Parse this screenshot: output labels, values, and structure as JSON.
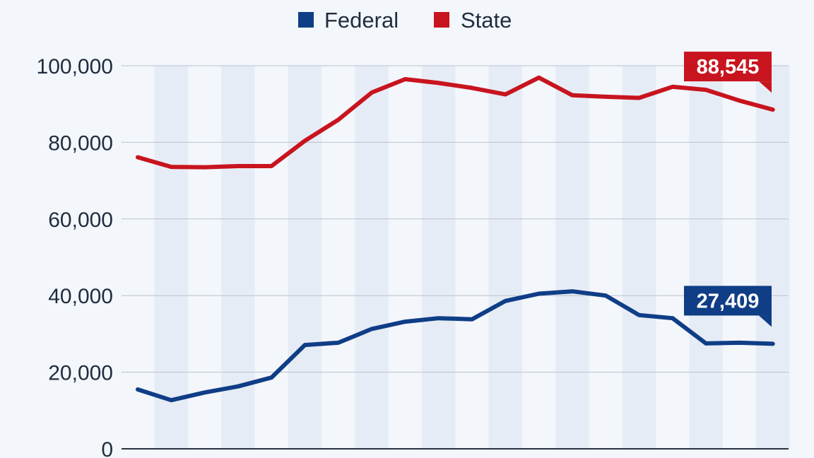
{
  "chart_data": {
    "type": "line",
    "title": "",
    "xlabel": "",
    "ylabel": "",
    "ylim": [
      0,
      100000
    ],
    "yticks": [
      0,
      20000,
      40000,
      60000,
      80000,
      100000
    ],
    "ytick_labels": [
      "0",
      "20,000",
      "40,000",
      "60,000",
      "80,000",
      "100,000"
    ],
    "grid": true,
    "legend_position": "top-center",
    "series": [
      {
        "name": "Federal",
        "color": "#0f3d86",
        "values": [
          15500,
          12700,
          14700,
          16300,
          18600,
          27100,
          27700,
          31300,
          33200,
          34100,
          33800,
          38600,
          40500,
          41100,
          40000,
          34900,
          34100,
          27500,
          27700,
          27409
        ],
        "end_label": "27,409"
      },
      {
        "name": "State",
        "color": "#c8141e",
        "values": [
          76100,
          73600,
          73500,
          73800,
          73800,
          80400,
          85900,
          93000,
          96500,
          95500,
          94200,
          92500,
          96900,
          92300,
          91900,
          91600,
          94500,
          93700,
          90900,
          88545
        ],
        "end_label": "88,545"
      }
    ]
  }
}
